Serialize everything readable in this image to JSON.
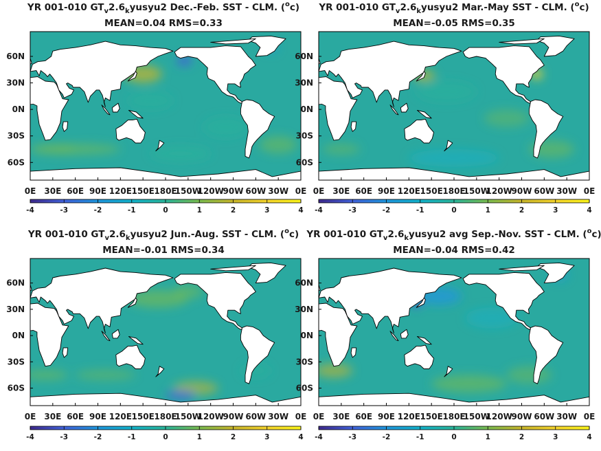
{
  "colors": {
    "ocean_base": "#2aa9a0",
    "land": "#ffffff",
    "coast": "#000000",
    "colormap": [
      "#3e2a8c",
      "#4161d8",
      "#1f95db",
      "#13b1c9",
      "#2bb59a",
      "#7abb4f",
      "#c7b52b",
      "#f4d32d",
      "#f9f41a"
    ]
  },
  "chart_data": [
    {
      "type": "heatmap",
      "title": {
        "prefix": "YR 001-010 GT",
        "sub1": "v",
        "mid": "2.6",
        "sub2": "k",
        "rest": "yusyu2  Dec.-Feb. SST - CLM. (",
        "sup": "o",
        "unit": "c)"
      },
      "stats": "MEAN=0.04   RMS=0.33",
      "mean": 0.04,
      "rms": 0.33,
      "xticks": [
        "0E",
        "30E",
        "60E",
        "90E",
        "120E",
        "150E",
        "180E",
        "150W",
        "120W",
        "90W",
        "60W",
        "30W",
        "0E"
      ],
      "yticks": [
        "60N",
        "30N",
        "0N",
        "30S",
        "60S"
      ],
      "colorbar": {
        "ticks": [
          "-4",
          "-3",
          "-2",
          "-1",
          "0",
          "1",
          "2",
          "3",
          "4"
        ],
        "range": [
          -4,
          4
        ]
      }
    },
    {
      "type": "heatmap",
      "title": {
        "prefix": "YR 001-010 GT",
        "sub1": "v",
        "mid": "2.6",
        "sub2": "k",
        "rest": "yusyu2 Mar.-May SST - CLM. (",
        "sup": "o",
        "unit": "c)"
      },
      "stats": "MEAN=-0.05   RMS=0.35",
      "mean": -0.05,
      "rms": 0.35,
      "xticks": [
        "0E",
        "30E",
        "60E",
        "90E",
        "120E",
        "150E",
        "180E",
        "150W",
        "120W",
        "90W",
        "60W",
        "30W",
        "0E"
      ],
      "yticks": [
        "60N",
        "30N",
        "0N",
        "30S",
        "60S"
      ],
      "colorbar": {
        "ticks": [
          "-4",
          "-3",
          "-2",
          "-1",
          "0",
          "1",
          "2",
          "3",
          "4"
        ],
        "range": [
          -4,
          4
        ]
      }
    },
    {
      "type": "heatmap",
      "title": {
        "prefix": "YR 001-010 GT",
        "sub1": "v",
        "mid": "2.6",
        "sub2": "k",
        "rest": "yusyu2 Jun.-Aug. SST - CLM. (",
        "sup": "o",
        "unit": "c)"
      },
      "stats": "MEAN=-0.01   RMS=0.34",
      "mean": -0.01,
      "rms": 0.34,
      "xticks": [
        "0E",
        "30E",
        "60E",
        "90E",
        "120E",
        "150E",
        "180E",
        "150W",
        "120W",
        "90W",
        "60W",
        "30W",
        "0E"
      ],
      "yticks": [
        "60N",
        "30N",
        "0N",
        "30S",
        "60S"
      ],
      "colorbar": {
        "ticks": [
          "-4",
          "-3",
          "-2",
          "-1",
          "0",
          "1",
          "2",
          "3",
          "4"
        ],
        "range": [
          -4,
          4
        ]
      }
    },
    {
      "type": "heatmap",
      "title": {
        "prefix": "YR 001-010 GT",
        "sub1": "v",
        "mid": "2.6",
        "sub2": "k",
        "rest": "yusyu2 avg Sep.-Nov. SST - CLM. (",
        "sup": "o",
        "unit": "c)"
      },
      "stats": "MEAN=-0.04   RMS=0.42",
      "mean": -0.04,
      "rms": 0.42,
      "xticks": [
        "0E",
        "30E",
        "60E",
        "90E",
        "120E",
        "150E",
        "180E",
        "150W",
        "120W",
        "90W",
        "60W",
        "30W",
        "0E"
      ],
      "yticks": [
        "60N",
        "30N",
        "0N",
        "30S",
        "60S"
      ],
      "colorbar": {
        "ticks": [
          "-4",
          "-3",
          "-2",
          "-1",
          "0",
          "1",
          "2",
          "3",
          "4"
        ],
        "range": [
          -4,
          4
        ]
      }
    }
  ]
}
